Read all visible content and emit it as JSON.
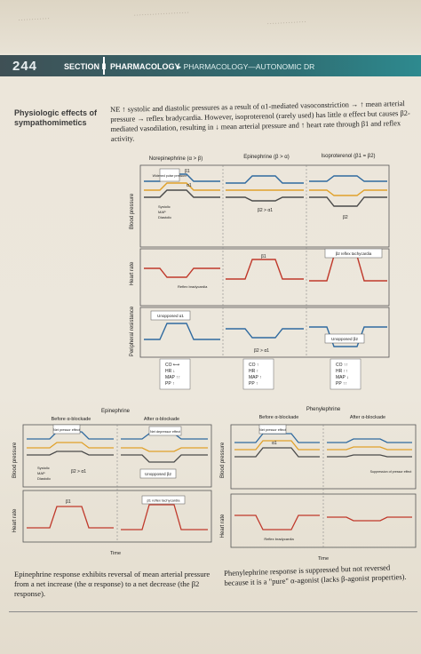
{
  "header": {
    "page_number": "244",
    "section": "SECTION II",
    "subject": "PHARMACOLOGY",
    "breadcrumb": "▸ PHARMACOLOGY—AUTONOMIC DR",
    "band_color": "#2f6f74"
  },
  "topic": {
    "title": "Physiologic effects of sympathomimetics",
    "intro": "NE ↑ systolic and diastolic pressures as a result of α1-mediated vasoconstriction → ↑ mean arterial pressure → reflex bradycardia. However, isoproterenol (rarely used) has little α effect but causes β2-mediated vasodilation, resulting in ↓ mean arterial pressure and ↑ heart rate through β1 and reflex activity."
  },
  "figure_top": {
    "columns": [
      "Norepinephrine (α > β)",
      "Epinephrine (β > α)",
      "Isoproterenol (β1 = β2)"
    ],
    "row_labels": [
      "Blood pressure",
      "Heart rate",
      "Peripheral resistance"
    ],
    "bp_annotations": {
      "widened_pulse": "Widened pulse pressure",
      "beta1": "β1",
      "alpha1": "α1",
      "systolic": "Systolic",
      "map": "MAP",
      "diastolic": "Diastolic",
      "b2_gt_a1": "β2 > α1",
      "b2": "β2"
    },
    "hr_annotations": {
      "reflex_brady": "Reflex bradycardia",
      "beta1": "β1",
      "b2_reflex_tachy": "β2 reflex tachycardia"
    },
    "pr_annotations": {
      "unopposed_a1": "Unopposed α1",
      "b2_gt_a1": "β2 > α1",
      "unopposed_b2": "Unopposed β2"
    },
    "summaries": [
      {
        "lines": [
          "CO ⟷",
          "HR ↓",
          "MAP ↑↑",
          "PP ↑"
        ]
      },
      {
        "lines": [
          "CO ↑",
          "HR ↑",
          "MAP ↑",
          "PP ↑"
        ]
      },
      {
        "lines": [
          "CO ↑↑",
          "HR ↑↑",
          "MAP ↓",
          "PP ↑↑"
        ]
      }
    ]
  },
  "figure_bottom_left": {
    "title": "Epinephrine",
    "subtitles": [
      "Before α-blockade",
      "After α-blockade"
    ],
    "row_labels": [
      "Blood pressure",
      "Heart rate"
    ],
    "annotations": {
      "net_pressor": "Net pressor effect",
      "net_depressor": "Net depressor effect",
      "systolic": "Systolic",
      "map": "MAP",
      "diastolic": "Diastolic",
      "b2_gt_a1": "β2 > α1",
      "unopposed_b2": "Unopposed β2",
      "beta1": "β1",
      "b1_reflex_tachy": "β1 reflex tachycardia"
    },
    "time_label": "Time"
  },
  "figure_bottom_right": {
    "title": "Phenylephrine",
    "subtitles": [
      "Before α-blockade",
      "After α-blockade"
    ],
    "row_labels": [
      "Blood pressure",
      "Heart rate"
    ],
    "annotations": {
      "net_pressor": "Net pressor effect",
      "alpha1": "α1",
      "suppression": "Suppression of pressor effect",
      "reflex_brady": "Reflex bradycardia"
    },
    "time_label": "Time"
  },
  "captions": {
    "left": "Epinephrine response exhibits reversal of mean arterial pressure from a net increase (the α response) to a net decrease (the β2 response).",
    "right": "Phenylephrine response is suppressed but not reversed because it is a \"pure\" α-agonist (lacks β-agonist properties)."
  },
  "colors": {
    "systolic": "#2f6aa0",
    "map": "#e0a12a",
    "diastolic": "#4a4a4a",
    "heart_rate": "#c0392b",
    "resistance": "#2f6aa0"
  }
}
